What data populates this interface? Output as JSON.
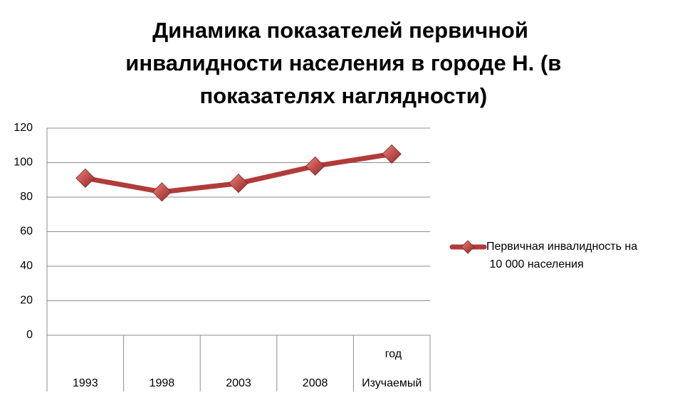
{
  "chart_data": {
    "type": "line",
    "title": "Динамика показателей первичной инвалидности населения в городе Н. (в показателях наглядности)",
    "categories": [
      "1993",
      "1998",
      "2003",
      "2008",
      "Изучаемый год"
    ],
    "series": [
      {
        "name": "Первичная инвалидность на 10 000 населения",
        "color": "#b03c3a",
        "values": [
          91,
          83,
          88,
          98,
          105
        ]
      }
    ],
    "ylim": [
      0,
      120
    ],
    "yticks": [
      0,
      20,
      40,
      60,
      80,
      100,
      120
    ],
    "grid": true,
    "legend": "right"
  }
}
